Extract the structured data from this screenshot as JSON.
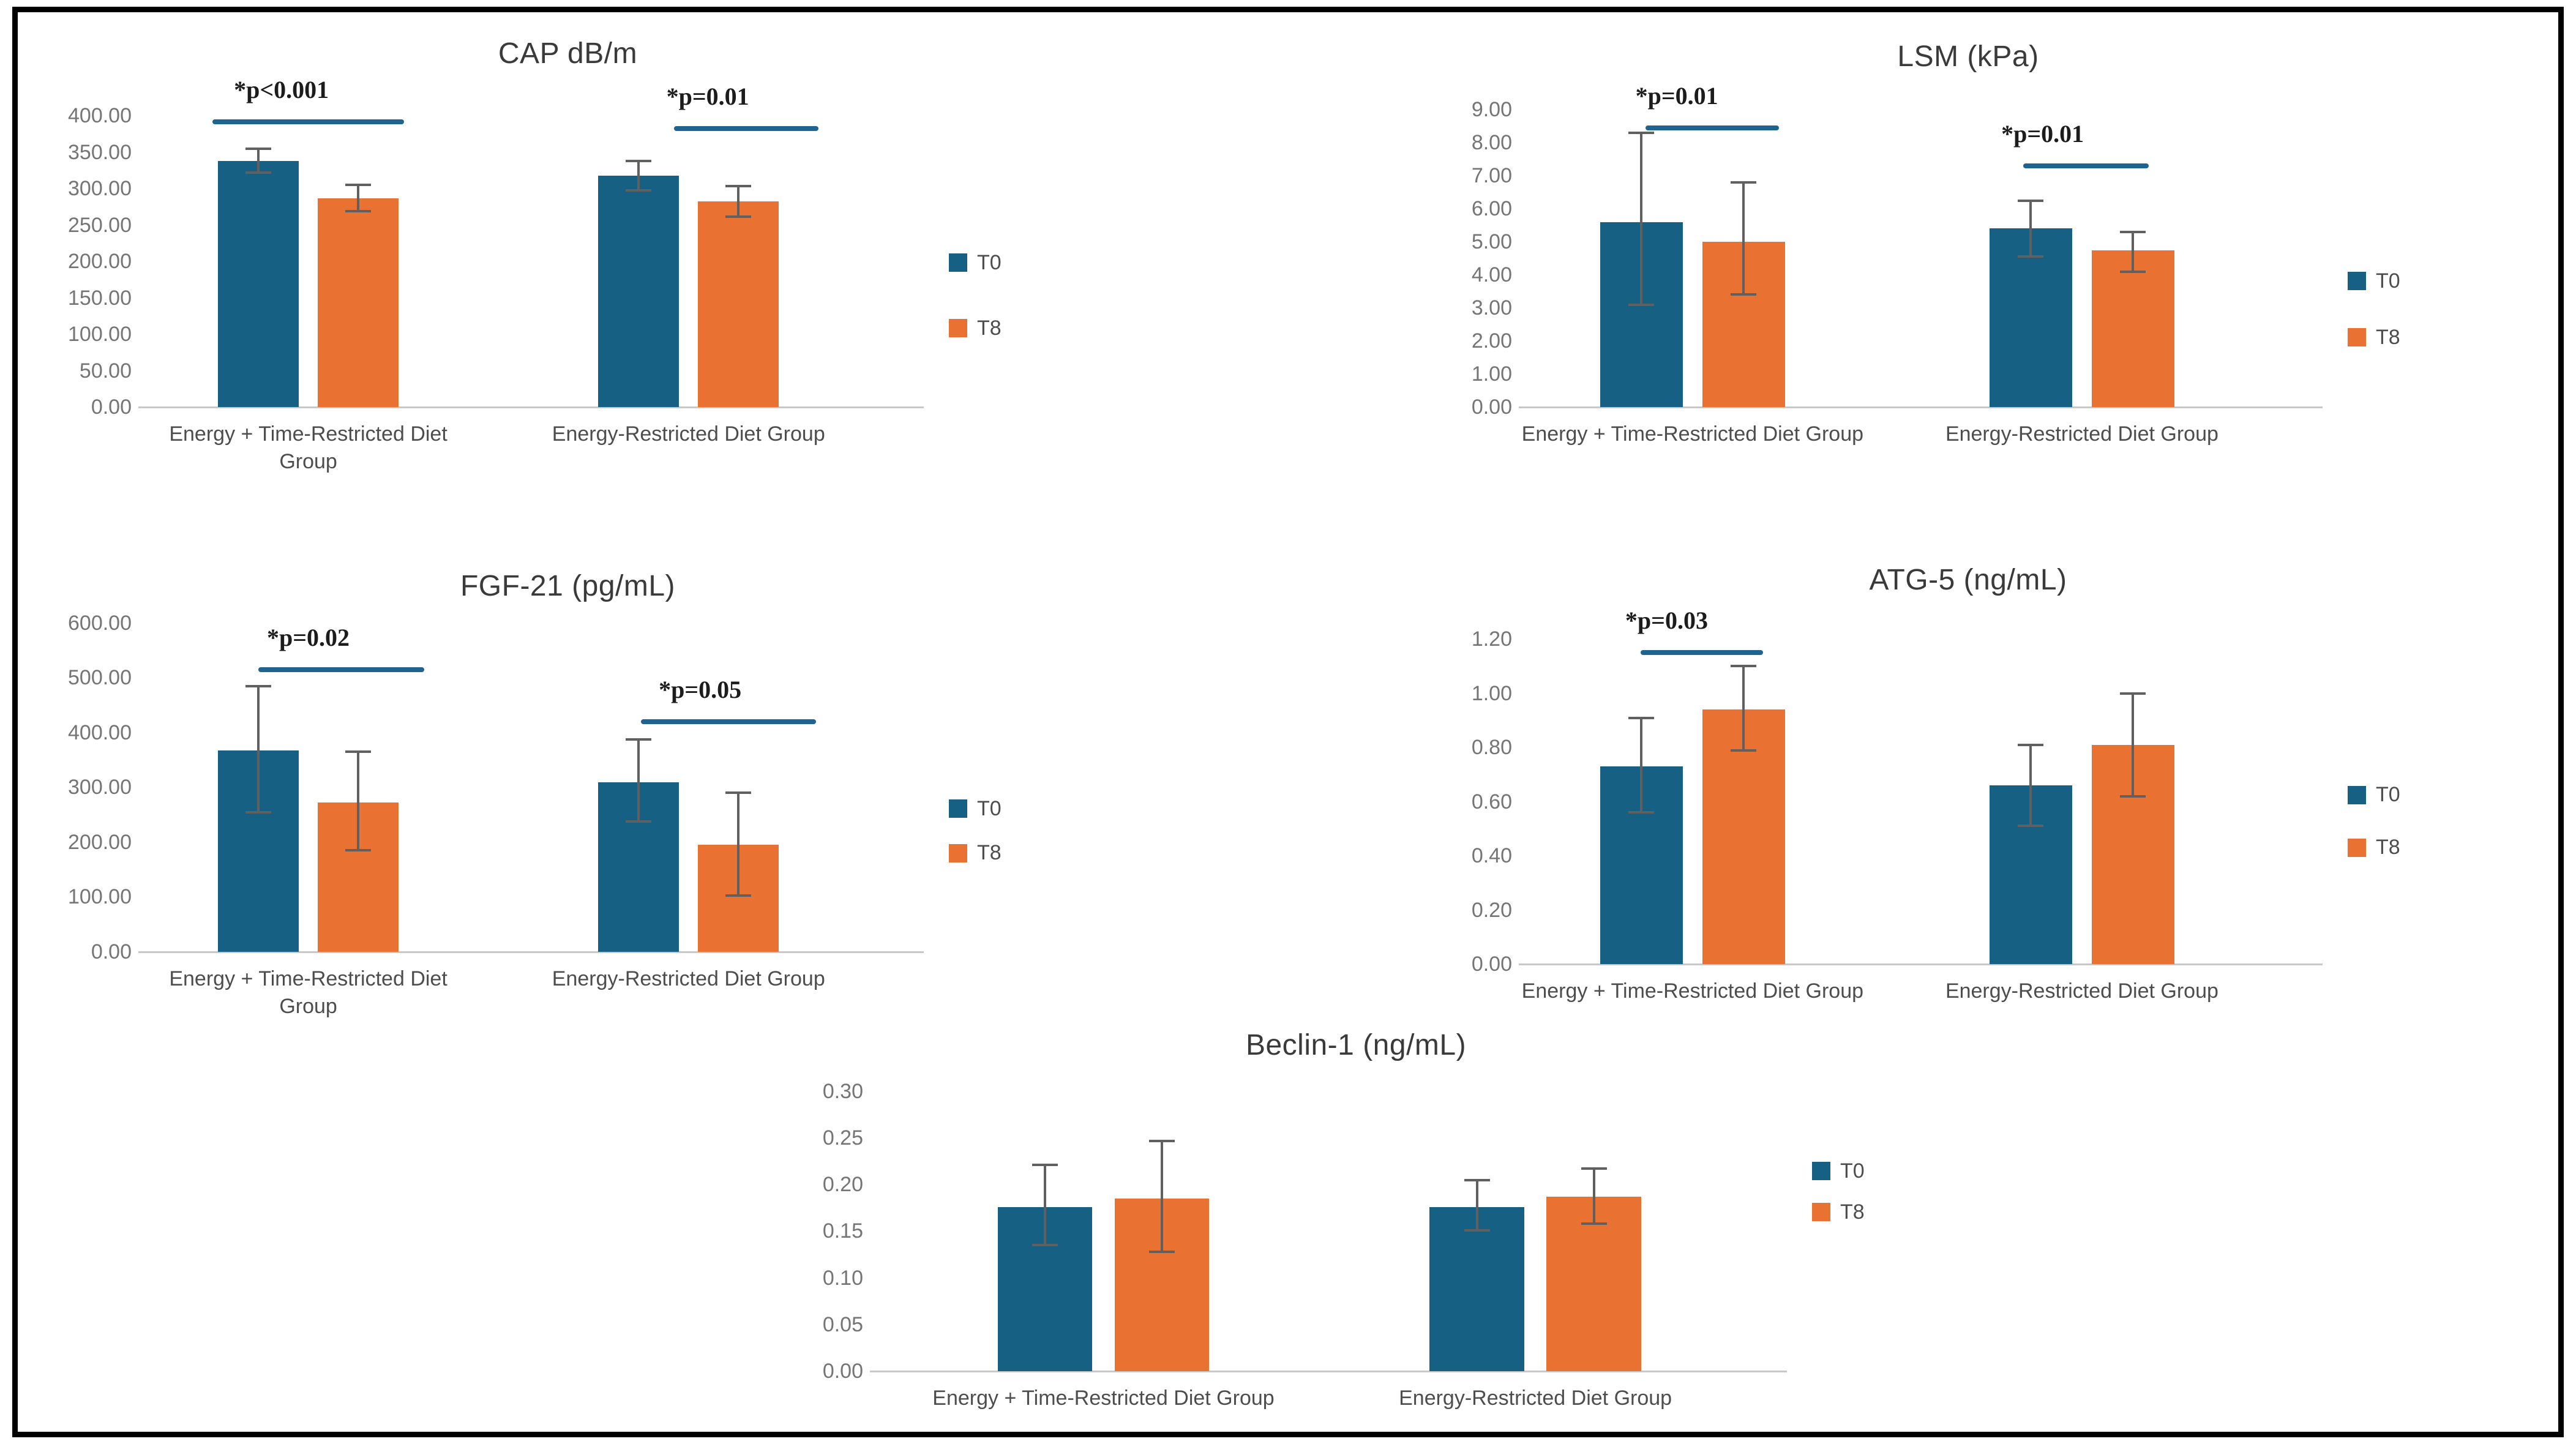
{
  "figure": {
    "background": "#ffffff",
    "frame_color": "#000000"
  },
  "colors": {
    "t0": "#156083",
    "t8": "#e97232",
    "significance_line": "#1f6391",
    "axis_line": "#c8c8c8",
    "error_bar": "#606060",
    "tick_text": "#757575",
    "category_text": "#4d4d4d",
    "title_text": "#3a3a3a",
    "p_label_text": "#1c1c1c"
  },
  "chart_data": [
    {
      "id": "cap",
      "type": "bar",
      "title": "CAP dB/m",
      "categories": [
        "Energy + Time-Restricted Diet\nGroup",
        "Energy-Restricted Diet Group"
      ],
      "series": [
        {
          "name": "T0",
          "color": "#156083",
          "values": [
            338,
            318
          ],
          "err_lo": [
            322,
            298
          ],
          "err_hi": [
            355,
            338
          ]
        },
        {
          "name": "T8",
          "color": "#e97232",
          "values": [
            287,
            283
          ],
          "err_lo": [
            269,
            262
          ],
          "err_hi": [
            305,
            304
          ]
        }
      ],
      "yticks": [
        {
          "label": "400.00",
          "v": 400
        },
        {
          "label": "350.00",
          "v": 350
        },
        {
          "label": "300.00",
          "v": 300
        },
        {
          "label": "250.00",
          "v": 250
        },
        {
          "label": "200.00",
          "v": 200
        },
        {
          "label": "150.00",
          "v": 150
        },
        {
          "label": "100.00",
          "v": 100
        },
        {
          "label": "50.00",
          "v": 50
        },
        {
          "label": "0.00",
          "v": 0
        }
      ],
      "ylim": [
        0,
        400
      ],
      "grid": false,
      "legend_position": "right",
      "significance": [
        {
          "group": 0,
          "label": "*p<0.001",
          "line_y": 392,
          "line_center": 0.21,
          "line_half": 0.125,
          "label_center": 0.175
        },
        {
          "group": 1,
          "label": "*p=0.01",
          "line_y": 383,
          "line_center": 0.78,
          "line_half": 0.094,
          "label_center": 0.73
        }
      ]
    },
    {
      "id": "lsm",
      "type": "bar",
      "title": "LSM (kPa)",
      "categories": [
        "Energy + Time-Restricted Diet Group",
        "Energy-Restricted Diet Group"
      ],
      "series": [
        {
          "name": "T0",
          "color": "#156083",
          "values": [
            5.6,
            5.4
          ],
          "err_lo": [
            3.1,
            4.55
          ],
          "err_hi": [
            8.3,
            6.25
          ]
        },
        {
          "name": "T8",
          "color": "#e97232",
          "values": [
            5.0,
            4.75
          ],
          "err_lo": [
            3.4,
            4.1
          ],
          "err_hi": [
            6.8,
            5.3
          ]
        }
      ],
      "yticks": [
        {
          "label": "9.00",
          "v": 9
        },
        {
          "label": "8.00",
          "v": 8
        },
        {
          "label": "7.00",
          "v": 7
        },
        {
          "label": "6.00",
          "v": 6
        },
        {
          "label": "5.00",
          "v": 5
        },
        {
          "label": "4.00",
          "v": 4
        },
        {
          "label": "3.00",
          "v": 3
        },
        {
          "label": "2.00",
          "v": 2
        },
        {
          "label": "1.00",
          "v": 1
        },
        {
          "label": "0.00",
          "v": 0
        }
      ],
      "ylim": [
        0,
        9
      ],
      "grid": false,
      "legend_position": "right",
      "significance": [
        {
          "group": 0,
          "label": "*p=0.01",
          "line_y": 8.45,
          "line_center": 0.235,
          "line_half": 0.085,
          "label_center": 0.19
        },
        {
          "group": 1,
          "label": "*p=0.01",
          "line_y": 7.3,
          "line_center": 0.71,
          "line_half": 0.08,
          "label_center": 0.655
        }
      ]
    },
    {
      "id": "fgf21",
      "type": "bar",
      "title": "FGF-21 (pg/mL)",
      "categories": [
        "Energy + Time-Restricted Diet\nGroup",
        "Energy-Restricted Diet Group"
      ],
      "series": [
        {
          "name": "T0",
          "color": "#156083",
          "values": [
            367,
            310
          ],
          "err_lo": [
            255,
            238
          ],
          "err_hi": [
            485,
            388
          ]
        },
        {
          "name": "T8",
          "color": "#e97232",
          "values": [
            273,
            196
          ],
          "err_lo": [
            185,
            103
          ],
          "err_hi": [
            365,
            290
          ]
        }
      ],
      "yticks": [
        {
          "label": "600.00",
          "v": 600
        },
        {
          "label": "500.00",
          "v": 500
        },
        {
          "label": "400.00",
          "v": 400
        },
        {
          "label": "300.00",
          "v": 300
        },
        {
          "label": "200.00",
          "v": 200
        },
        {
          "label": "100.00",
          "v": 100
        },
        {
          "label": "0.00",
          "v": 0
        }
      ],
      "ylim": [
        0,
        600
      ],
      "grid": false,
      "legend_position": "right",
      "significance": [
        {
          "group": 0,
          "label": "*p=0.02",
          "line_y": 515,
          "line_center": 0.253,
          "line_half": 0.108,
          "label_center": 0.21
        },
        {
          "group": 1,
          "label": "*p=0.05",
          "line_y": 420,
          "line_center": 0.757,
          "line_half": 0.114,
          "label_center": 0.72
        }
      ]
    },
    {
      "id": "atg5",
      "type": "bar",
      "title": "ATG-5 (ng/mL)",
      "categories": [
        "Energy + Time-Restricted Diet Group",
        "Energy-Restricted Diet Group"
      ],
      "series": [
        {
          "name": "T0",
          "color": "#156083",
          "values": [
            0.73,
            0.66
          ],
          "err_lo": [
            0.56,
            0.51
          ],
          "err_hi": [
            0.91,
            0.81
          ]
        },
        {
          "name": "T8",
          "color": "#e97232",
          "values": [
            0.94,
            0.81
          ],
          "err_lo": [
            0.79,
            0.62
          ],
          "err_hi": [
            1.1,
            1.0
          ]
        }
      ],
      "yticks": [
        {
          "label": "1.20",
          "v": 1.2
        },
        {
          "label": "1.00",
          "v": 1.0
        },
        {
          "label": "0.80",
          "v": 0.8
        },
        {
          "label": "0.60",
          "v": 0.6
        },
        {
          "label": "0.40",
          "v": 0.4
        },
        {
          "label": "0.20",
          "v": 0.2
        },
        {
          "label": "0.00",
          "v": 0
        }
      ],
      "ylim": [
        0,
        1.2
      ],
      "grid": false,
      "legend_position": "right",
      "significance": [
        {
          "group": 0,
          "label": "*p=0.03",
          "line_y": 1.15,
          "line_center": 0.222,
          "line_half": 0.078,
          "label_center": 0.177
        }
      ]
    },
    {
      "id": "beclin1",
      "type": "bar",
      "title": "Beclin-1 (ng/mL)",
      "categories": [
        "Energy + Time-Restricted Diet Group",
        "Energy-Restricted Diet Group"
      ],
      "series": [
        {
          "name": "T0",
          "color": "#156083",
          "values": [
            0.176,
            0.176
          ],
          "err_lo": [
            0.135,
            0.151
          ],
          "err_hi": [
            0.221,
            0.205
          ]
        },
        {
          "name": "T8",
          "color": "#e97232",
          "values": [
            0.185,
            0.187
          ],
          "err_lo": [
            0.128,
            0.158
          ],
          "err_hi": [
            0.247,
            0.217
          ]
        }
      ],
      "yticks": [
        {
          "label": "0.30",
          "v": 0.3
        },
        {
          "label": "0.25",
          "v": 0.25
        },
        {
          "label": "0.20",
          "v": 0.2
        },
        {
          "label": "0.15",
          "v": 0.15
        },
        {
          "label": "0.10",
          "v": 0.1
        },
        {
          "label": "0.05",
          "v": 0.05
        },
        {
          "label": "0.00",
          "v": 0
        }
      ],
      "ylim": [
        0,
        0.3
      ],
      "grid": false,
      "legend_position": "right",
      "significance": []
    }
  ]
}
